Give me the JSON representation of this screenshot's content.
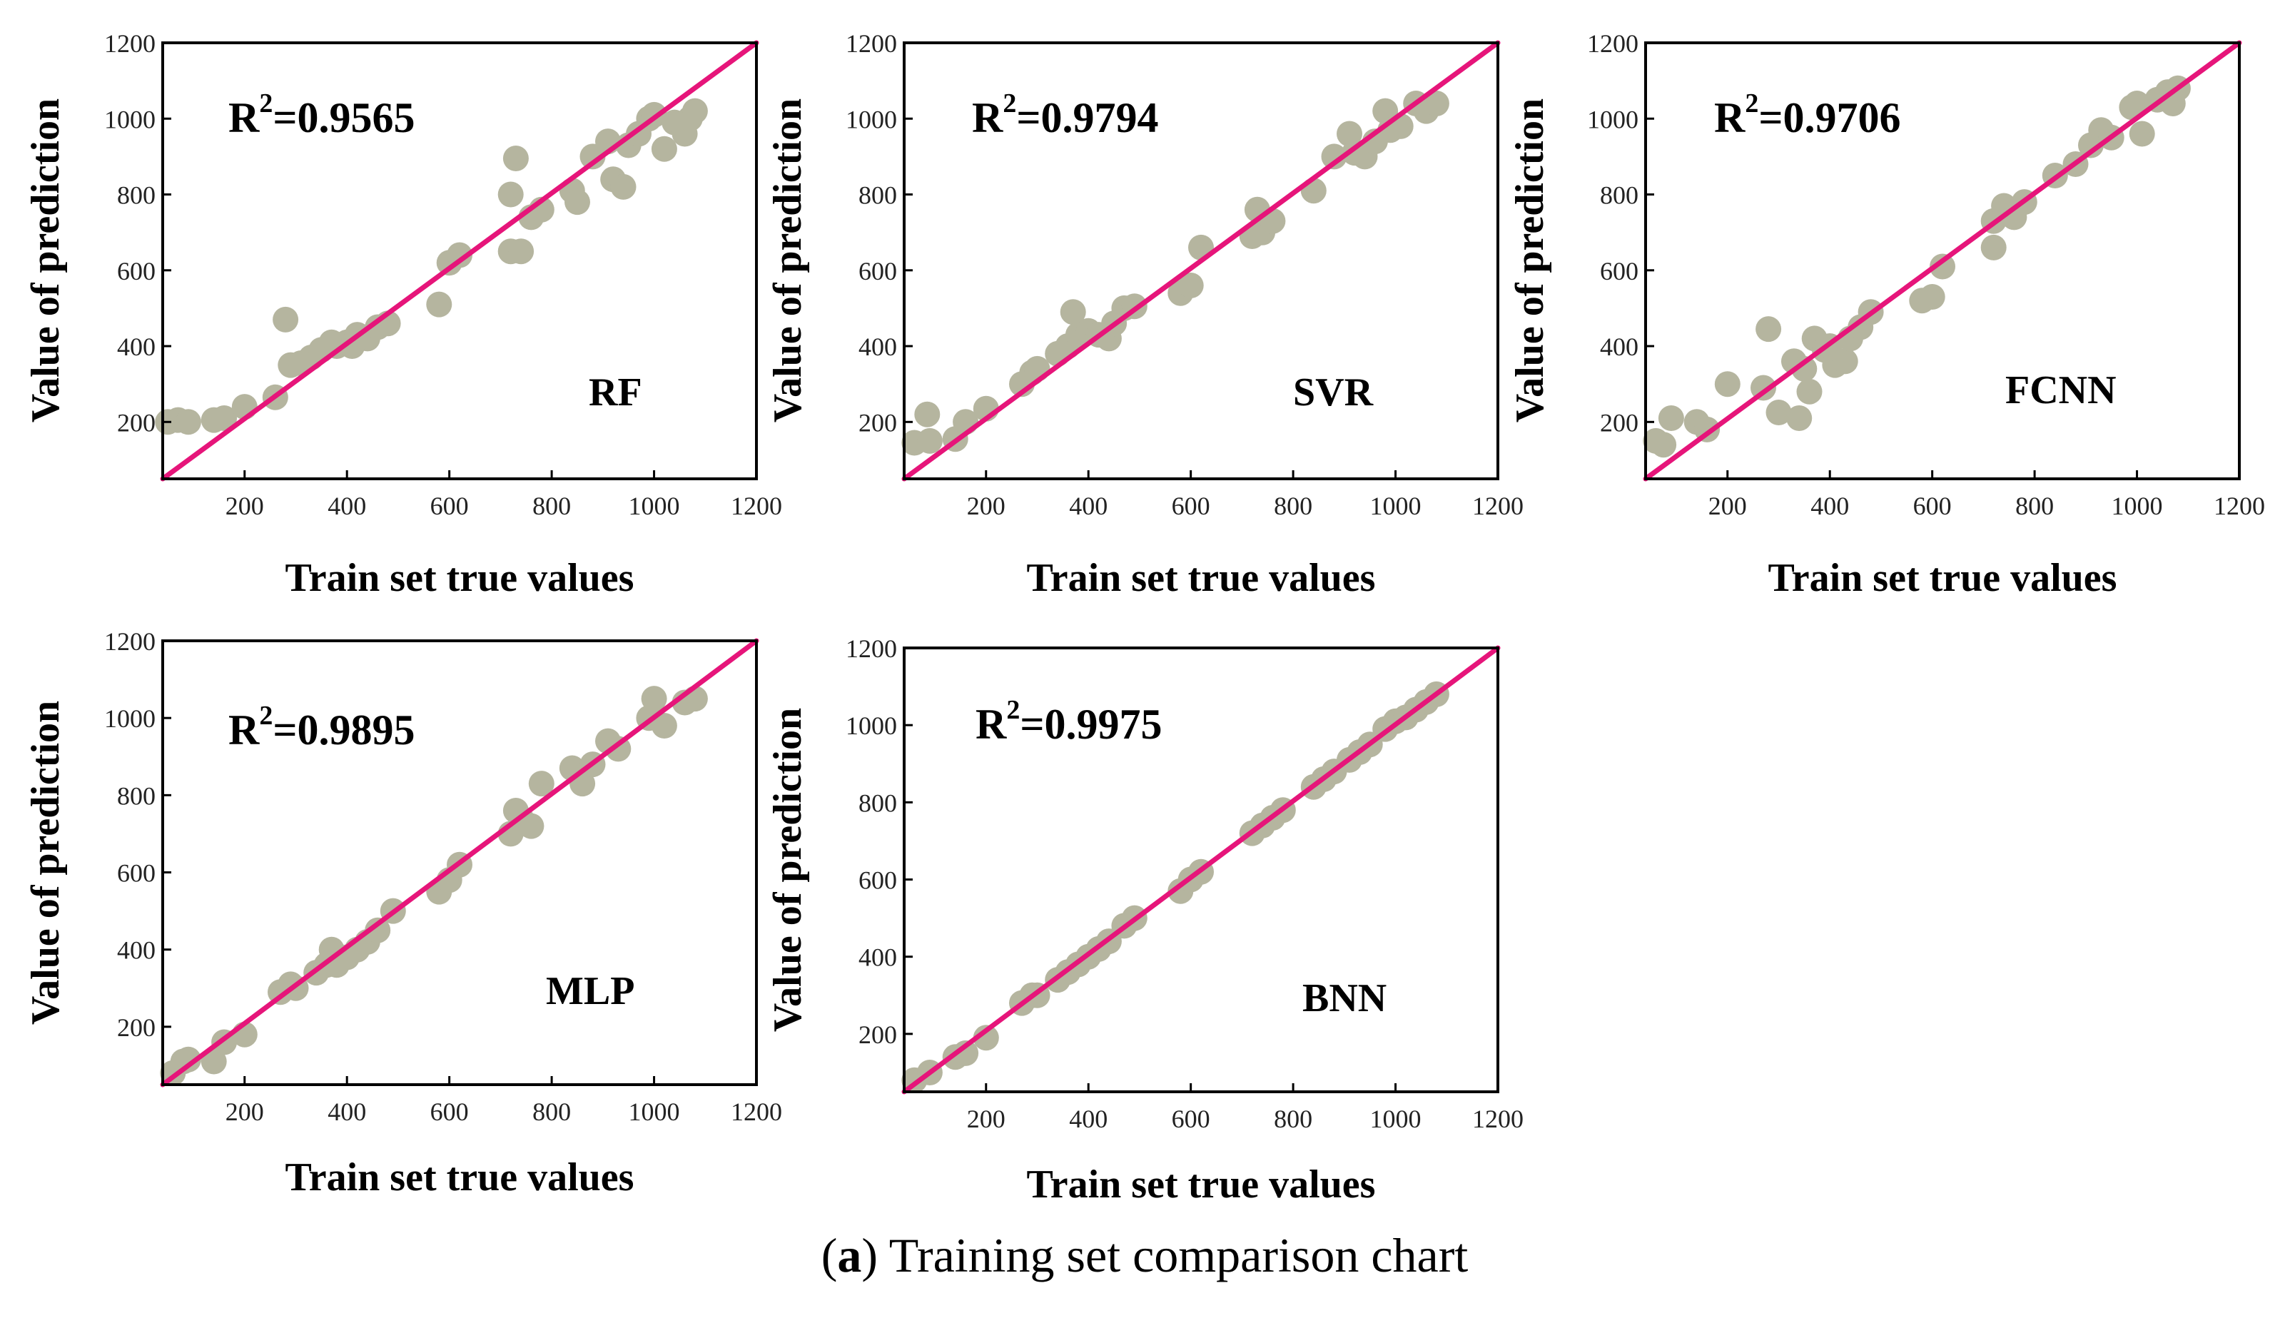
{
  "figure": {
    "caption_prefix": "(",
    "caption_letter": "a",
    "caption_close": ")",
    "caption_text": " Training set comparison chart"
  },
  "colors": {
    "point": "#b5b59f",
    "fit_line": "#e6157a",
    "axis": "#000000"
  },
  "chart_data": [
    {
      "type": "scatter",
      "model": "RF",
      "r2_label": "R",
      "r2_sup": "2",
      "r2_value": "=0.9565",
      "xlabel": "Train set true values",
      "ylabel": "Value of prediction",
      "xlim": [
        40,
        1200
      ],
      "ylim": [
        50,
        1200
      ],
      "xticks": [
        200,
        400,
        600,
        800,
        1000,
        1200
      ],
      "yticks": [
        200,
        400,
        600,
        800,
        1000,
        1200
      ],
      "fit_line": [
        [
          40,
          50
        ],
        [
          1200,
          1200
        ]
      ],
      "points": [
        [
          50,
          200
        ],
        [
          70,
          205
        ],
        [
          90,
          200
        ],
        [
          140,
          205
        ],
        [
          160,
          210
        ],
        [
          200,
          240
        ],
        [
          260,
          265
        ],
        [
          280,
          470
        ],
        [
          290,
          350
        ],
        [
          310,
          355
        ],
        [
          330,
          370
        ],
        [
          350,
          390
        ],
        [
          370,
          410
        ],
        [
          380,
          400
        ],
        [
          400,
          410
        ],
        [
          410,
          400
        ],
        [
          420,
          430
        ],
        [
          440,
          420
        ],
        [
          460,
          450
        ],
        [
          480,
          460
        ],
        [
          580,
          510
        ],
        [
          600,
          620
        ],
        [
          620,
          640
        ],
        [
          720,
          650
        ],
        [
          720,
          800
        ],
        [
          740,
          650
        ],
        [
          730,
          895
        ],
        [
          760,
          740
        ],
        [
          780,
          760
        ],
        [
          840,
          810
        ],
        [
          850,
          780
        ],
        [
          880,
          900
        ],
        [
          910,
          940
        ],
        [
          920,
          840
        ],
        [
          940,
          820
        ],
        [
          950,
          930
        ],
        [
          970,
          960
        ],
        [
          990,
          1000
        ],
        [
          1000,
          1010
        ],
        [
          1020,
          920
        ],
        [
          1040,
          990
        ],
        [
          1060,
          960
        ],
        [
          1070,
          1000
        ],
        [
          1080,
          1020
        ]
      ]
    },
    {
      "type": "scatter",
      "model": "SVR",
      "r2_label": "R",
      "r2_sup": "2",
      "r2_value": "=0.9794",
      "xlabel": "Train set true values",
      "ylabel": "Value of prediction",
      "xlim": [
        40,
        1200
      ],
      "ylim": [
        50,
        1200
      ],
      "xticks": [
        200,
        400,
        600,
        800,
        1000,
        1200
      ],
      "yticks": [
        200,
        400,
        600,
        800,
        1000,
        1200
      ],
      "fit_line": [
        [
          40,
          50
        ],
        [
          1200,
          1200
        ]
      ],
      "points": [
        [
          60,
          145
        ],
        [
          85,
          220
        ],
        [
          90,
          150
        ],
        [
          140,
          155
        ],
        [
          160,
          200
        ],
        [
          200,
          235
        ],
        [
          270,
          300
        ],
        [
          290,
          330
        ],
        [
          300,
          340
        ],
        [
          340,
          380
        ],
        [
          360,
          400
        ],
        [
          370,
          490
        ],
        [
          380,
          430
        ],
        [
          400,
          440
        ],
        [
          420,
          430
        ],
        [
          440,
          420
        ],
        [
          450,
          460
        ],
        [
          470,
          500
        ],
        [
          490,
          505
        ],
        [
          580,
          540
        ],
        [
          600,
          560
        ],
        [
          620,
          660
        ],
        [
          720,
          690
        ],
        [
          730,
          760
        ],
        [
          740,
          700
        ],
        [
          760,
          730
        ],
        [
          840,
          810
        ],
        [
          880,
          900
        ],
        [
          910,
          960
        ],
        [
          920,
          910
        ],
        [
          940,
          900
        ],
        [
          960,
          940
        ],
        [
          980,
          1020
        ],
        [
          990,
          970
        ],
        [
          1010,
          980
        ],
        [
          1040,
          1040
        ],
        [
          1060,
          1020
        ],
        [
          1080,
          1040
        ]
      ]
    },
    {
      "type": "scatter",
      "model": "FCNN",
      "r2_label": "R",
      "r2_sup": "2",
      "r2_value": "=0.9706",
      "xlabel": "Train set true values",
      "ylabel": "Value of prediction",
      "xlim": [
        40,
        1200
      ],
      "ylim": [
        50,
        1200
      ],
      "xticks": [
        200,
        400,
        600,
        800,
        1000,
        1200
      ],
      "yticks": [
        200,
        400,
        600,
        800,
        1000,
        1200
      ],
      "fit_line": [
        [
          40,
          50
        ],
        [
          1200,
          1200
        ]
      ],
      "points": [
        [
          60,
          150
        ],
        [
          75,
          140
        ],
        [
          90,
          210
        ],
        [
          140,
          200
        ],
        [
          160,
          180
        ],
        [
          200,
          300
        ],
        [
          270,
          290
        ],
        [
          280,
          445
        ],
        [
          300,
          225
        ],
        [
          330,
          360
        ],
        [
          340,
          210
        ],
        [
          350,
          340
        ],
        [
          360,
          280
        ],
        [
          370,
          420
        ],
        [
          390,
          390
        ],
        [
          400,
          400
        ],
        [
          410,
          350
        ],
        [
          430,
          360
        ],
        [
          440,
          420
        ],
        [
          460,
          450
        ],
        [
          480,
          490
        ],
        [
          580,
          520
        ],
        [
          600,
          530
        ],
        [
          620,
          610
        ],
        [
          720,
          730
        ],
        [
          720,
          660
        ],
        [
          740,
          770
        ],
        [
          760,
          740
        ],
        [
          780,
          780
        ],
        [
          840,
          850
        ],
        [
          880,
          880
        ],
        [
          910,
          930
        ],
        [
          930,
          970
        ],
        [
          950,
          950
        ],
        [
          990,
          1030
        ],
        [
          1000,
          1040
        ],
        [
          1010,
          960
        ],
        [
          1040,
          1050
        ],
        [
          1060,
          1070
        ],
        [
          1070,
          1040
        ],
        [
          1080,
          1080
        ]
      ]
    },
    {
      "type": "scatter",
      "model": "MLP",
      "r2_label": "R",
      "r2_sup": "2",
      "r2_value": "=0.9895",
      "xlabel": "Train set true values",
      "ylabel": "Value of prediction",
      "xlim": [
        40,
        1200
      ],
      "ylim": [
        50,
        1200
      ],
      "xticks": [
        200,
        400,
        600,
        800,
        1000,
        1200
      ],
      "yticks": [
        200,
        400,
        600,
        800,
        1000,
        1200
      ],
      "fit_line": [
        [
          40,
          50
        ],
        [
          1200,
          1200
        ]
      ],
      "points": [
        [
          60,
          80
        ],
        [
          80,
          110
        ],
        [
          90,
          115
        ],
        [
          140,
          110
        ],
        [
          160,
          160
        ],
        [
          200,
          180
        ],
        [
          270,
          290
        ],
        [
          290,
          310
        ],
        [
          300,
          300
        ],
        [
          340,
          340
        ],
        [
          360,
          360
        ],
        [
          370,
          400
        ],
        [
          380,
          360
        ],
        [
          400,
          380
        ],
        [
          420,
          400
        ],
        [
          440,
          420
        ],
        [
          460,
          450
        ],
        [
          490,
          500
        ],
        [
          580,
          550
        ],
        [
          600,
          580
        ],
        [
          620,
          620
        ],
        [
          720,
          700
        ],
        [
          730,
          760
        ],
        [
          740,
          740
        ],
        [
          760,
          720
        ],
        [
          780,
          830
        ],
        [
          840,
          870
        ],
        [
          860,
          830
        ],
        [
          880,
          880
        ],
        [
          910,
          940
        ],
        [
          930,
          920
        ],
        [
          990,
          1000
        ],
        [
          1000,
          1050
        ],
        [
          1020,
          980
        ],
        [
          1060,
          1040
        ],
        [
          1080,
          1050
        ]
      ]
    },
    {
      "type": "scatter",
      "model": "BNN",
      "r2_label": "R",
      "r2_sup": "2",
      "r2_value": "=0.9975",
      "xlabel": "Train set true values",
      "ylabel": "Value of prediction",
      "xlim": [
        40,
        1200
      ],
      "ylim": [
        50,
        1200
      ],
      "xticks": [
        200,
        400,
        600,
        800,
        1000,
        1200
      ],
      "yticks": [
        200,
        400,
        600,
        800,
        1000,
        1200
      ],
      "fit_line": [
        [
          40,
          50
        ],
        [
          1200,
          1200
        ]
      ],
      "points": [
        [
          60,
          80
        ],
        [
          90,
          100
        ],
        [
          140,
          140
        ],
        [
          160,
          150
        ],
        [
          200,
          190
        ],
        [
          270,
          280
        ],
        [
          290,
          300
        ],
        [
          300,
          300
        ],
        [
          340,
          340
        ],
        [
          360,
          360
        ],
        [
          380,
          380
        ],
        [
          400,
          400
        ],
        [
          420,
          420
        ],
        [
          440,
          440
        ],
        [
          470,
          480
        ],
        [
          490,
          500
        ],
        [
          580,
          570
        ],
        [
          600,
          600
        ],
        [
          620,
          620
        ],
        [
          720,
          720
        ],
        [
          740,
          740
        ],
        [
          760,
          760
        ],
        [
          780,
          780
        ],
        [
          840,
          840
        ],
        [
          860,
          860
        ],
        [
          880,
          880
        ],
        [
          910,
          910
        ],
        [
          930,
          930
        ],
        [
          950,
          950
        ],
        [
          980,
          990
        ],
        [
          1000,
          1010
        ],
        [
          1020,
          1020
        ],
        [
          1040,
          1040
        ],
        [
          1060,
          1060
        ],
        [
          1080,
          1080
        ]
      ]
    }
  ]
}
